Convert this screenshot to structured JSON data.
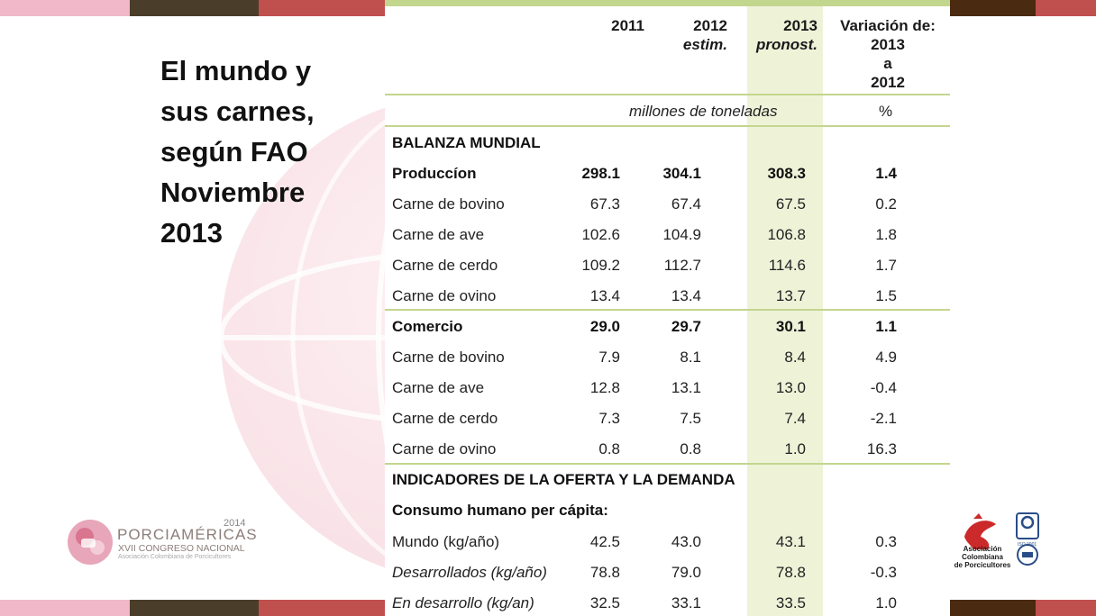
{
  "slide": {
    "title_lines": [
      "El mundo y",
      "sus carnes,",
      "según FAO",
      "Noviembre",
      "2013"
    ],
    "colors": {
      "stripe_pink": "#f0b8c8",
      "stripe_dark": "#4a3e2a",
      "stripe_red": "#c0504d",
      "stripe_brown": "#4a2a10",
      "table_accent": "#c3d68e",
      "highlight_col": "#eef3d8"
    }
  },
  "table": {
    "headers": {
      "y2011": "2011",
      "y2012": "2012",
      "y2012_sub": "estim.",
      "y2013": "2013",
      "y2013_sub": "pronost.",
      "var_l1": "Variación de:",
      "var_l2": "2013",
      "var_l3": "a",
      "var_l4": "2012"
    },
    "units_main": "millones de toneladas",
    "units_pct": "%",
    "rows": [
      {
        "label": "BALANZA MUNDIAL",
        "v1": "",
        "v2": "",
        "v3": "",
        "v4": ""
      },
      {
        "label": "Produccíon",
        "v1": "298.1",
        "v2": "304.1",
        "v3": "308.3",
        "v4": "1.4"
      },
      {
        "label": "Carne de bovino",
        "v1": "67.3",
        "v2": "67.4",
        "v3": "67.5",
        "v4": "0.2"
      },
      {
        "label": "Carne de ave",
        "v1": "102.6",
        "v2": "104.9",
        "v3": "106.8",
        "v4": "1.8"
      },
      {
        "label": "Carne de cerdo",
        "v1": "109.2",
        "v2": "112.7",
        "v3": "114.6",
        "v4": "1.7"
      },
      {
        "label": "Carne de ovino",
        "v1": "13.4",
        "v2": "13.4",
        "v3": "13.7",
        "v4": "1.5"
      },
      {
        "label": "Comercio",
        "v1": "29.0",
        "v2": "29.7",
        "v3": "30.1",
        "v4": "1.1"
      },
      {
        "label": "Carne de bovino",
        "v1": "7.9",
        "v2": "8.1",
        "v3": "8.4",
        "v4": "4.9"
      },
      {
        "label": "Carne de ave",
        "v1": "12.8",
        "v2": "13.1",
        "v3": "13.0",
        "v4": "-0.4"
      },
      {
        "label": "Carne de cerdo",
        "v1": "7.3",
        "v2": "7.5",
        "v3": "7.4",
        "v4": "-2.1"
      },
      {
        "label": "Carne de ovino",
        "v1": "0.8",
        "v2": "0.8",
        "v3": "1.0",
        "v4": "16.3"
      },
      {
        "label": "INDICADORES DE LA OFERTA Y LA DEMANDA",
        "v1": "",
        "v2": "",
        "v3": "",
        "v4": ""
      },
      {
        "label": "Consumo humano per cápita:",
        "v1": "",
        "v2": "",
        "v3": "",
        "v4": ""
      },
      {
        "label": "Mundo (kg/año)",
        "v1": "42.5",
        "v2": "43.0",
        "v3": "43.1",
        "v4": "0.3"
      },
      {
        "label": "Desarrollados (kg/año)",
        "v1": "78.8",
        "v2": "79.0",
        "v3": "78.8",
        "v4": "-0.3"
      },
      {
        "label": "En desarrollo (kg/an)",
        "v1": "32.5",
        "v2": "33.1",
        "v3": "33.5",
        "v4": "1.0"
      }
    ]
  },
  "logos": {
    "left": {
      "year": "2014",
      "name": "PORCIAMÉRICAS",
      "subtitle": "XVII CONGRESO NACIONAL",
      "tagline": "Asociación Colombiana de Porcicultores"
    },
    "right": {
      "line1": "Asociación",
      "line2": "Colombiana",
      "line3": "de Porcicultores",
      "badge": "ISO 9001"
    }
  }
}
